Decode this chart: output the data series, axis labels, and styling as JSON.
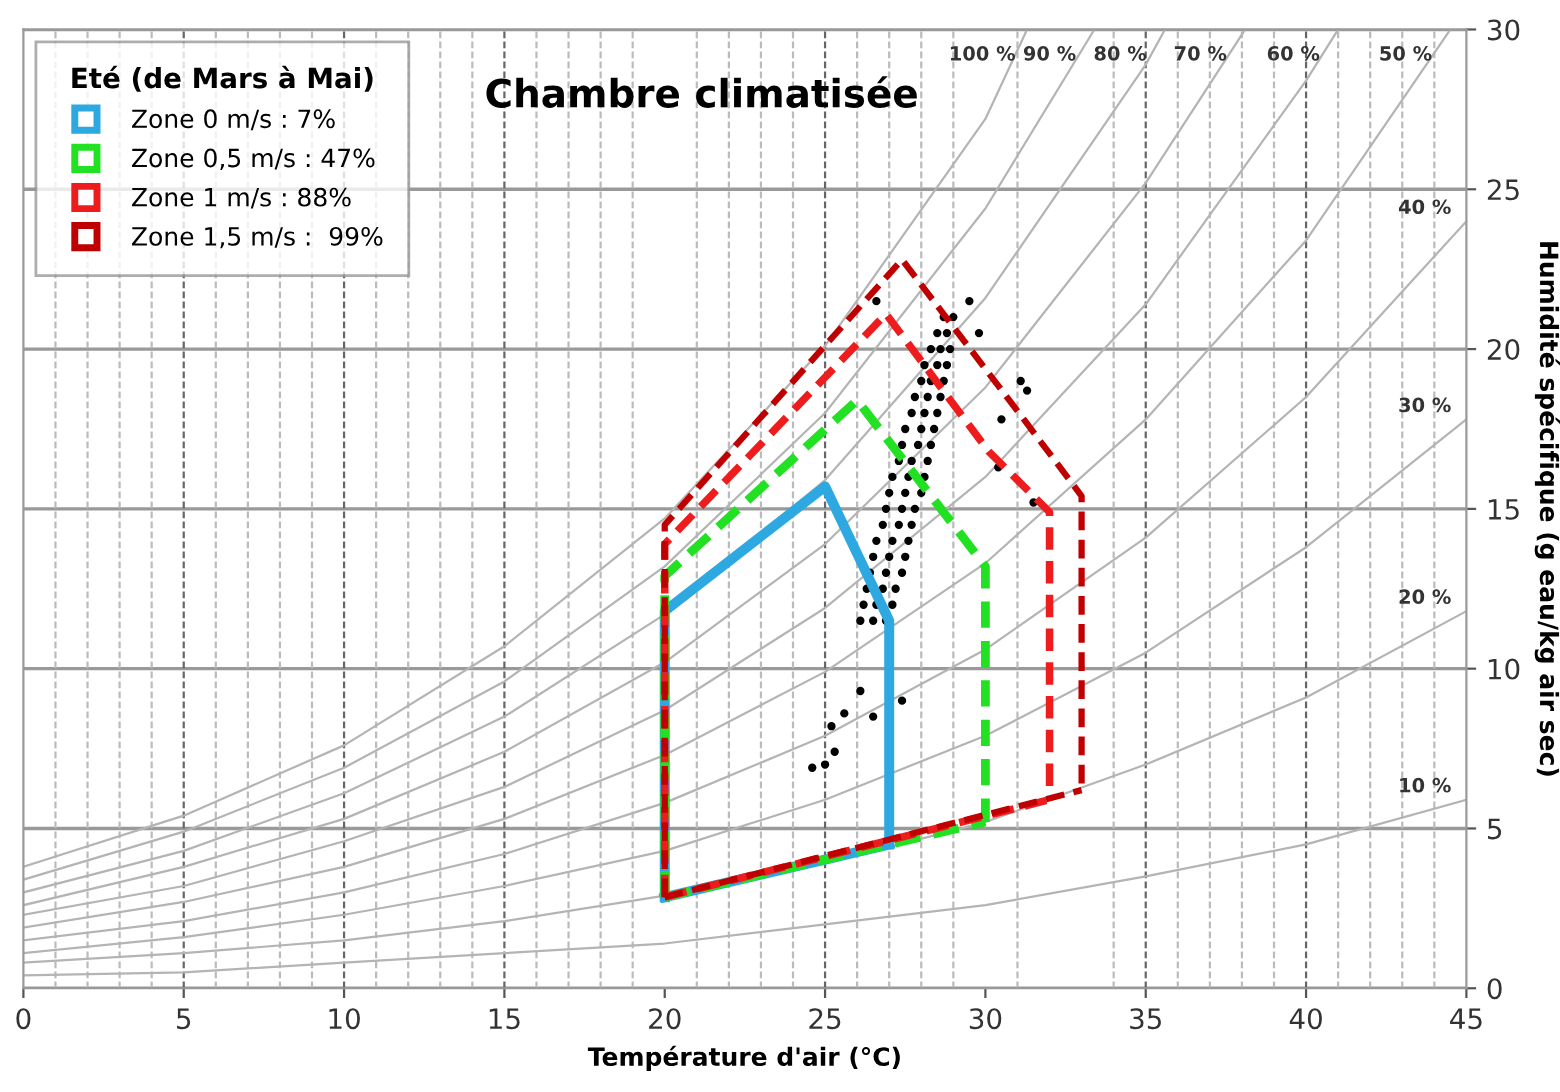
{
  "chart_data": {
    "type": "line",
    "title": "Chambre climatisée",
    "legend_title": "Eté (de Mars à Mai)",
    "xlabel": "Température d'air (°C)",
    "ylabel": "Humidité spécifique (g eau/kg air sec)",
    "xlim": [
      0,
      45
    ],
    "ylim": [
      0,
      30
    ],
    "xticks": [
      0,
      5,
      10,
      15,
      20,
      25,
      30,
      35,
      40,
      45
    ],
    "yticks": [
      0,
      5,
      10,
      15,
      20,
      25,
      30
    ],
    "grid": "y",
    "legend": "top left",
    "marker": "none",
    "series": [
      {
        "name": "100 %",
        "color": "#b4b4b4",
        "x": [
          0,
          5,
          10,
          15,
          20,
          25,
          30,
          31.3
        ],
        "values": [
          3.8,
          5.4,
          7.6,
          10.7,
          14.7,
          20.1,
          27.2,
          30
        ]
      },
      {
        "name": "90 %",
        "color": "#b4b4b4",
        "x": [
          0,
          5,
          10,
          15,
          20,
          25,
          30,
          33.4
        ],
        "values": [
          3.4,
          4.9,
          6.9,
          9.6,
          13.2,
          18.0,
          24.4,
          30
        ]
      },
      {
        "name": "80 %",
        "color": "#b4b4b4",
        "x": [
          0,
          5,
          10,
          15,
          20,
          25,
          30,
          35,
          35.6
        ],
        "values": [
          3.0,
          4.3,
          6.1,
          8.5,
          11.7,
          15.9,
          21.6,
          28.9,
          30
        ]
      },
      {
        "name": "70 %",
        "color": "#b4b4b4",
        "x": [
          0,
          5,
          10,
          15,
          20,
          25,
          30,
          35,
          38.1
        ],
        "values": [
          2.6,
          3.8,
          5.3,
          7.4,
          10.2,
          13.9,
          18.8,
          25.2,
          30
        ]
      },
      {
        "name": "60 %",
        "color": "#b4b4b4",
        "x": [
          0,
          5,
          10,
          15,
          20,
          25,
          30,
          35,
          40,
          41
        ],
        "values": [
          2.3,
          3.2,
          4.6,
          6.3,
          8.7,
          11.9,
          16.0,
          21.4,
          28.4,
          30
        ]
      },
      {
        "name": "50 %",
        "color": "#b4b4b4",
        "x": [
          0,
          5,
          10,
          15,
          20,
          25,
          30,
          35,
          40,
          44.5
        ],
        "values": [
          1.9,
          2.7,
          3.8,
          5.3,
          7.3,
          9.9,
          13.3,
          17.8,
          23.4,
          30
        ]
      },
      {
        "name": "40 %",
        "color": "#b4b4b4",
        "x": [
          0,
          5,
          10,
          15,
          20,
          25,
          30,
          35,
          40,
          45
        ],
        "values": [
          1.5,
          2.1,
          3.0,
          4.2,
          5.8,
          7.9,
          10.6,
          14.1,
          18.5,
          24.0
        ]
      },
      {
        "name": "30 %",
        "color": "#b4b4b4",
        "x": [
          0,
          5,
          10,
          15,
          20,
          25,
          30,
          35,
          40,
          45
        ],
        "values": [
          1.1,
          1.6,
          2.3,
          3.2,
          4.3,
          5.9,
          7.9,
          10.5,
          13.8,
          17.8
        ]
      },
      {
        "name": "20 %",
        "color": "#b4b4b4",
        "x": [
          0,
          5,
          10,
          15,
          20,
          25,
          30,
          35,
          40,
          45
        ],
        "values": [
          0.8,
          1.1,
          1.5,
          2.1,
          2.9,
          3.9,
          5.2,
          7.0,
          9.1,
          11.8
        ]
      },
      {
        "name": "10 %",
        "color": "#b4b4b4",
        "x": [
          0,
          5,
          10,
          15,
          20,
          25,
          30,
          35,
          40,
          45
        ],
        "values": [
          0.4,
          0.5,
          0.8,
          1.1,
          1.4,
          2.0,
          2.6,
          3.5,
          4.5,
          5.9
        ]
      },
      {
        "type": "scatter",
        "marker": "circle",
        "color": "#000000",
        "x": [
          26.1,
          26.5,
          26.9,
          26.2,
          26.6,
          27.1,
          26.3,
          26.8,
          27.2,
          26.4,
          26.9,
          27.4,
          26.5,
          27.0,
          27.5,
          26.6,
          27.1,
          27.6,
          26.8,
          27.3,
          27.7,
          26.9,
          27.4,
          27.8,
          27.0,
          27.5,
          28.0,
          27.1,
          27.6,
          28.1,
          27.3,
          27.7,
          28.2,
          27.4,
          27.9,
          28.3,
          27.5,
          28.0,
          28.4,
          27.7,
          28.1,
          28.5,
          27.8,
          28.2,
          28.6,
          28.0,
          28.3,
          28.7,
          28.1,
          28.5,
          28.8,
          28.3,
          28.6,
          28.9,
          28.5,
          28.8,
          28.7,
          29.0,
          25.0,
          25.3,
          25.2,
          25.6,
          26.1,
          26.5,
          27.4,
          24.6,
          29.8,
          30.5,
          31.1,
          31.3,
          30.4,
          31.5,
          29.5,
          26.6
        ],
        "values": [
          11.5,
          11.5,
          11.5,
          12.0,
          12.0,
          12.0,
          12.5,
          12.5,
          12.5,
          13.0,
          13.0,
          13.0,
          13.5,
          13.5,
          13.5,
          14.0,
          14.0,
          14.0,
          14.5,
          14.5,
          14.5,
          15.0,
          15.0,
          15.0,
          15.5,
          15.5,
          15.5,
          16.0,
          16.0,
          16.0,
          16.5,
          16.5,
          16.5,
          17.0,
          17.0,
          17.0,
          17.5,
          17.5,
          17.5,
          18.0,
          18.0,
          18.0,
          18.5,
          18.5,
          18.5,
          19.0,
          19.0,
          19.0,
          19.5,
          19.5,
          19.5,
          20.0,
          20.0,
          20.0,
          20.5,
          20.5,
          21.0,
          21.0,
          7.0,
          7.4,
          8.2,
          8.6,
          9.3,
          8.5,
          9.0,
          6.9,
          20.5,
          17.8,
          19.0,
          18.7,
          16.3,
          15.2,
          21.5,
          21.5
        ]
      },
      {
        "name": "Zone 0 m/s : 7%",
        "color": "#2ea8e0",
        "line_style": "solid",
        "x": [
          20,
          20,
          25,
          26,
          27,
          27
        ],
        "values": [
          2.85,
          11.8,
          15.7,
          13.6,
          11.5,
          4.5
        ]
      },
      {
        "color": "#2ea8e0",
        "line_style": "solid",
        "x": [
          20,
          27
        ],
        "values": [
          2.85,
          4.5
        ]
      },
      {
        "name": "Zone 0,5 m/s : 47%",
        "color": "#22e022",
        "line_style": "dashed",
        "x": [
          20,
          20,
          26,
          30,
          30
        ],
        "values": [
          2.85,
          12.9,
          18.4,
          13.2,
          5.2
        ]
      },
      {
        "color": "#22e022",
        "line_style": "dashed",
        "x": [
          20,
          30
        ],
        "values": [
          2.85,
          5.2
        ]
      },
      {
        "name": "Zone 1 m/s : 88%",
        "color": "#ee1c1c",
        "line_style": "dashed",
        "x": [
          20,
          20,
          26.9,
          30.1,
          32,
          32
        ],
        "values": [
          2.85,
          13.9,
          21.1,
          16.8,
          14.9,
          5.9
        ]
      },
      {
        "color": "#ee1c1c",
        "line_style": "dashed",
        "x": [
          20,
          32
        ],
        "values": [
          2.85,
          5.9
        ]
      },
      {
        "name": "Zone 1,5 m/s :  99%",
        "color": "#c00000",
        "line_style": "dashed",
        "x": [
          20,
          20,
          27.4,
          31.2,
          33,
          33
        ],
        "values": [
          2.85,
          14.5,
          22.8,
          17.8,
          15.4,
          6.2
        ]
      },
      {
        "color": "#c00000",
        "line_style": "dashed",
        "x": [
          20,
          33
        ],
        "values": [
          2.85,
          6.2
        ]
      }
    ],
    "ref_lines": [
      {
        "axis": "x",
        "value": 1,
        "color": "#bbbbbb",
        "line_style": "dashed"
      },
      {
        "axis": "x",
        "value": 2,
        "color": "#bbbbbb",
        "line_style": "dashed"
      },
      {
        "axis": "x",
        "value": 3,
        "color": "#bbbbbb",
        "line_style": "dashed"
      },
      {
        "axis": "x",
        "value": 4,
        "color": "#bbbbbb",
        "line_style": "dashed"
      },
      {
        "axis": "x",
        "value": 5,
        "color": "#666666",
        "line_style": "dashed"
      },
      {
        "axis": "x",
        "value": 6,
        "color": "#bbbbbb",
        "line_style": "dashed"
      },
      {
        "axis": "x",
        "value": 7,
        "color": "#bbbbbb",
        "line_style": "dashed"
      },
      {
        "axis": "x",
        "value": 8,
        "color": "#bbbbbb",
        "line_style": "dashed"
      },
      {
        "axis": "x",
        "value": 9,
        "color": "#bbbbbb",
        "line_style": "dashed"
      },
      {
        "axis": "x",
        "value": 10,
        "color": "#666666",
        "line_style": "dashed"
      },
      {
        "axis": "x",
        "value": 11,
        "color": "#bbbbbb",
        "line_style": "dashed"
      },
      {
        "axis": "x",
        "value": 12,
        "color": "#bbbbbb",
        "line_style": "dashed"
      },
      {
        "axis": "x",
        "value": 13,
        "color": "#bbbbbb",
        "line_style": "dashed"
      },
      {
        "axis": "x",
        "value": 14,
        "color": "#bbbbbb",
        "line_style": "dashed"
      },
      {
        "axis": "x",
        "value": 15,
        "color": "#666666",
        "line_style": "dashed"
      },
      {
        "axis": "x",
        "value": 16,
        "color": "#bbbbbb",
        "line_style": "dashed"
      },
      {
        "axis": "x",
        "value": 17,
        "color": "#bbbbbb",
        "line_style": "dashed"
      },
      {
        "axis": "x",
        "value": 18,
        "color": "#bbbbbb",
        "line_style": "dashed"
      },
      {
        "axis": "x",
        "value": 19,
        "color": "#bbbbbb",
        "line_style": "dashed"
      },
      {
        "axis": "x",
        "value": 21,
        "color": "#bbbbbb",
        "line_style": "dashed"
      },
      {
        "axis": "x",
        "value": 22,
        "color": "#bbbbbb",
        "line_style": "dashed"
      },
      {
        "axis": "x",
        "value": 23,
        "color": "#bbbbbb",
        "line_style": "dashed"
      },
      {
        "axis": "x",
        "value": 24,
        "color": "#bbbbbb",
        "line_style": "dashed"
      },
      {
        "axis": "x",
        "value": 25,
        "color": "#666666",
        "line_style": "dashed"
      },
      {
        "axis": "x",
        "value": 26,
        "color": "#bbbbbb",
        "line_style": "dashed"
      },
      {
        "axis": "x",
        "value": 27,
        "color": "#bbbbbb",
        "line_style": "dashed"
      },
      {
        "axis": "x",
        "value": 28,
        "color": "#bbbbbb",
        "line_style": "dashed"
      },
      {
        "axis": "x",
        "value": 29,
        "color": "#bbbbbb",
        "line_style": "dashed"
      },
      {
        "axis": "x",
        "value": 31,
        "color": "#bbbbbb",
        "line_style": "dashed"
      },
      {
        "axis": "x",
        "value": 34,
        "color": "#bbbbbb",
        "line_style": "dashed"
      },
      {
        "axis": "x",
        "value": 35,
        "color": "#666666",
        "line_style": "dashed"
      },
      {
        "axis": "x",
        "value": 36,
        "color": "#bbbbbb",
        "line_style": "dashed"
      },
      {
        "axis": "x",
        "value": 37,
        "color": "#bbbbbb",
        "line_style": "dashed"
      },
      {
        "axis": "x",
        "value": 38,
        "color": "#bbbbbb",
        "line_style": "dashed"
      },
      {
        "axis": "x",
        "value": 39,
        "color": "#bbbbbb",
        "line_style": "dashed"
      },
      {
        "axis": "x",
        "value": 40,
        "color": "#666666",
        "line_style": "dashed"
      },
      {
        "axis": "x",
        "value": 41,
        "color": "#bbbbbb",
        "line_style": "dashed"
      },
      {
        "axis": "x",
        "value": 42,
        "color": "#bbbbbb",
        "line_style": "dashed"
      },
      {
        "axis": "x",
        "value": 43,
        "color": "#bbbbbb",
        "line_style": "dashed"
      },
      {
        "axis": "x",
        "value": 44,
        "color": "#bbbbbb",
        "line_style": "dashed"
      }
    ]
  }
}
